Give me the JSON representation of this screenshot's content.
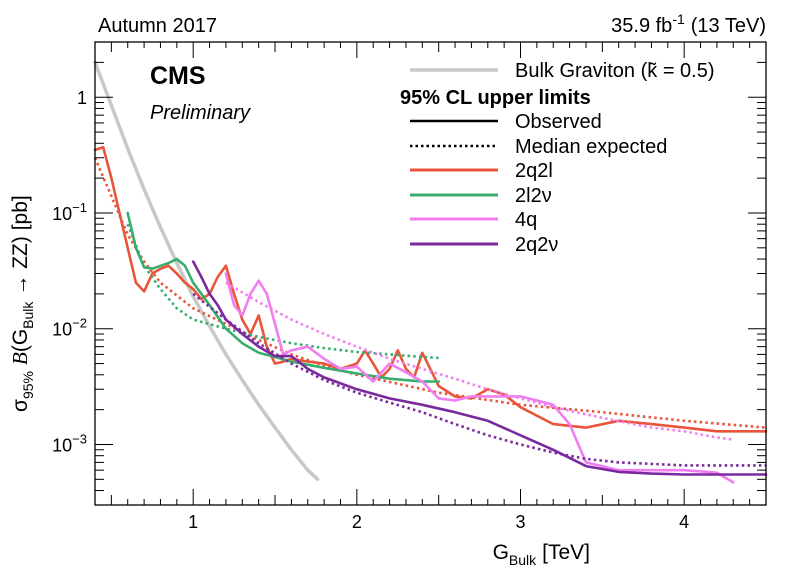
{
  "header": {
    "left_label": "Autumn 2017",
    "lumi": "35.9 fb",
    "lumi_exp": "-1",
    "energy": "(13 TeV)",
    "cms": "CMS",
    "preliminary": "Preliminary"
  },
  "axes": {
    "x_main": "G",
    "x_sub": "Bulk",
    "x_unit": "[TeV]",
    "y_sigma": "σ",
    "y_sigma_sub": "95%",
    "y_B": "B",
    "y_paren_open": "(G",
    "y_sub": "Bulk",
    "y_arrow": "→ ZZ) [pb]",
    "x_ticks": [
      "1",
      "2",
      "3",
      "4"
    ],
    "y_ticks": [
      {
        "base": "1",
        "exp": ""
      },
      {
        "base": "10",
        "exp": "−1"
      },
      {
        "base": "10",
        "exp": "−2"
      },
      {
        "base": "10",
        "exp": "−3"
      }
    ]
  },
  "legend": {
    "theory": "Bulk Graviton (k̃ = 0.5)",
    "header": "95% CL upper limits",
    "observed": "Observed",
    "expected": "Median expected",
    "channels": [
      "2q2l",
      "2l2ν",
      "4q",
      "2q2ν"
    ]
  },
  "colors": {
    "2q2l": "#e8553a",
    "2l2ν": "#3aad6e",
    "4q": "#f07ef0",
    "2q2ν": "#7a2a9e",
    "theory": "#c8c8c8"
  },
  "chart_data": {
    "type": "line",
    "xlabel": "G_Bulk [TeV]",
    "ylabel": "σ_95% B(G_Bulk → ZZ) [pb]",
    "xlim": [
      0.4,
      4.5
    ],
    "ylim": [
      0.0003,
      3
    ],
    "yscale": "log",
    "legend_position": "top-right",
    "series": [
      {
        "name": "Bulk Graviton (k̃ = 0.5)",
        "style": "theory",
        "x": [
          0.4,
          0.5,
          0.6,
          0.7,
          0.8,
          0.9,
          1.0,
          1.1,
          1.2,
          1.3,
          1.4,
          1.5,
          1.6,
          1.7,
          1.76
        ],
        "y": [
          2.0,
          0.85,
          0.36,
          0.16,
          0.075,
          0.037,
          0.019,
          0.0105,
          0.006,
          0.0036,
          0.0022,
          0.0014,
          0.0009,
          0.0006,
          0.0005
        ]
      },
      {
        "name": "2q2l",
        "style": "observed",
        "x": [
          0.4,
          0.45,
          0.5,
          0.55,
          0.6,
          0.65,
          0.7,
          0.75,
          0.8,
          0.85,
          0.9,
          0.95,
          1.0,
          1.05,
          1.1,
          1.15,
          1.2,
          1.25,
          1.3,
          1.35,
          1.4,
          1.45,
          1.5,
          1.55,
          1.6,
          1.7,
          1.8,
          1.9,
          2.0,
          2.05,
          2.1,
          2.15,
          2.2,
          2.25,
          2.3,
          2.35,
          2.4,
          2.5,
          2.6,
          2.7,
          2.8,
          2.9,
          3.0,
          3.2,
          3.4,
          3.6,
          3.8,
          4.0,
          4.2,
          4.5
        ],
        "y": [
          0.35,
          0.37,
          0.2,
          0.1,
          0.05,
          0.025,
          0.021,
          0.03,
          0.033,
          0.035,
          0.03,
          0.025,
          0.022,
          0.018,
          0.02,
          0.028,
          0.035,
          0.02,
          0.012,
          0.009,
          0.013,
          0.007,
          0.005,
          0.0052,
          0.0055,
          0.0052,
          0.005,
          0.0045,
          0.005,
          0.0065,
          0.005,
          0.0038,
          0.0045,
          0.0065,
          0.0045,
          0.0038,
          0.0062,
          0.0032,
          0.0026,
          0.0025,
          0.003,
          0.0027,
          0.0021,
          0.0015,
          0.0014,
          0.0016,
          0.0015,
          0.0014,
          0.0013,
          0.0013
        ]
      },
      {
        "name": "2q2l",
        "style": "expected",
        "x": [
          0.4,
          0.5,
          0.6,
          0.7,
          0.8,
          1.0,
          1.2,
          1.4,
          1.6,
          1.8,
          2.0,
          2.5,
          3.0,
          3.5,
          4.0,
          4.5
        ],
        "y": [
          0.3,
          0.14,
          0.065,
          0.038,
          0.025,
          0.015,
          0.011,
          0.008,
          0.006,
          0.0048,
          0.004,
          0.0028,
          0.0022,
          0.0019,
          0.0016,
          0.0014
        ]
      },
      {
        "name": "2l2ν",
        "style": "observed",
        "x": [
          0.6,
          0.65,
          0.7,
          0.75,
          0.8,
          0.85,
          0.9,
          0.95,
          1.0,
          1.1,
          1.2,
          1.3,
          1.4,
          1.5,
          1.6,
          1.8,
          2.0,
          2.2,
          2.4,
          2.5
        ],
        "y": [
          0.1,
          0.05,
          0.034,
          0.033,
          0.035,
          0.037,
          0.04,
          0.035,
          0.025,
          0.016,
          0.01,
          0.0075,
          0.0062,
          0.0057,
          0.0052,
          0.0046,
          0.0041,
          0.0037,
          0.0035,
          0.0035
        ]
      },
      {
        "name": "2l2ν",
        "style": "expected",
        "x": [
          0.6,
          0.7,
          0.8,
          0.9,
          1.0,
          1.2,
          1.4,
          1.6,
          1.8,
          2.0,
          2.2,
          2.4,
          2.5
        ],
        "y": [
          0.08,
          0.035,
          0.022,
          0.015,
          0.012,
          0.01,
          0.0085,
          0.0075,
          0.0068,
          0.0063,
          0.006,
          0.0057,
          0.0056
        ]
      },
      {
        "name": "4q",
        "style": "observed",
        "x": [
          1.2,
          1.25,
          1.3,
          1.35,
          1.4,
          1.45,
          1.5,
          1.55,
          1.6,
          1.7,
          1.8,
          1.9,
          2.0,
          2.1,
          2.2,
          2.3,
          2.4,
          2.5,
          2.6,
          2.7,
          2.8,
          2.9,
          3.0,
          3.1,
          3.2,
          3.3,
          3.4,
          3.6,
          3.8,
          4.0,
          4.2,
          4.3
        ],
        "y": [
          0.03,
          0.016,
          0.013,
          0.02,
          0.026,
          0.02,
          0.011,
          0.006,
          0.0065,
          0.007,
          0.0055,
          0.0045,
          0.0047,
          0.0035,
          0.005,
          0.0042,
          0.0035,
          0.0025,
          0.0024,
          0.0026,
          0.0026,
          0.0026,
          0.0026,
          0.0024,
          0.0022,
          0.0015,
          0.0007,
          0.0006,
          0.0006,
          0.0006,
          0.00057,
          0.00047
        ]
      },
      {
        "name": "4q",
        "style": "expected",
        "x": [
          1.2,
          1.4,
          1.6,
          1.8,
          2.0,
          2.2,
          2.4,
          2.6,
          2.8,
          3.0,
          3.2,
          3.5,
          3.8,
          4.0,
          4.2,
          4.3
        ],
        "y": [
          0.025,
          0.017,
          0.012,
          0.009,
          0.007,
          0.0055,
          0.0045,
          0.0037,
          0.003,
          0.0025,
          0.0021,
          0.0017,
          0.0014,
          0.0013,
          0.00115,
          0.0011
        ]
      },
      {
        "name": "2q2ν",
        "style": "observed",
        "x": [
          1.0,
          1.05,
          1.1,
          1.15,
          1.2,
          1.3,
          1.4,
          1.5,
          1.6,
          1.7,
          1.8,
          2.0,
          2.2,
          2.4,
          2.6,
          2.8,
          3.0,
          3.2,
          3.4,
          3.6,
          3.8,
          4.0,
          4.2,
          4.5
        ],
        "y": [
          0.038,
          0.028,
          0.02,
          0.016,
          0.012,
          0.009,
          0.007,
          0.0058,
          0.0058,
          0.0045,
          0.0038,
          0.003,
          0.0025,
          0.0022,
          0.0019,
          0.0016,
          0.0012,
          0.0009,
          0.00065,
          0.00058,
          0.00056,
          0.00055,
          0.00055,
          0.00055
        ]
      },
      {
        "name": "2q2ν",
        "style": "expected",
        "x": [
          1.0,
          1.2,
          1.4,
          1.6,
          1.8,
          2.0,
          2.2,
          2.4,
          2.6,
          2.8,
          3.0,
          3.2,
          3.4,
          3.6,
          3.8,
          4.0,
          4.2,
          4.5
        ],
        "y": [
          0.02,
          0.012,
          0.0075,
          0.005,
          0.0036,
          0.0028,
          0.0023,
          0.0019,
          0.0015,
          0.0012,
          0.001,
          0.00085,
          0.00075,
          0.0007,
          0.00068,
          0.00066,
          0.00066,
          0.00066
        ]
      }
    ]
  }
}
